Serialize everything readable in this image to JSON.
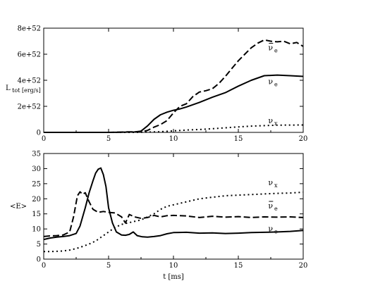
{
  "chart_data": [
    {
      "type": "line",
      "title": "",
      "xlabel": "",
      "ylabel": "L",
      "ylabel_sub": "tot [erg/s]",
      "xlim": [
        0,
        20
      ],
      "ylim": [
        0,
        8e+52
      ],
      "xticks": [
        0,
        5,
        10,
        15,
        20
      ],
      "xtick_labels": [
        "0",
        "5",
        "10",
        "15",
        "20"
      ],
      "yticks": [
        0,
        2e+52,
        4e+52,
        6e+52,
        8e+52
      ],
      "ytick_labels": [
        "0",
        "2e+52",
        "4e+52",
        "6e+52",
        "8e+52"
      ],
      "grid": false,
      "legend": "none",
      "series": [
        {
          "name": "ν e",
          "label_main": "ν",
          "label_sub": "e",
          "label_bar": false,
          "label_at": [
            17.3,
            3.7e+52
          ],
          "style": "solid",
          "x": [
            0,
            5,
            6,
            7,
            7.5,
            8,
            8.5,
            9,
            9.5,
            10,
            10.5,
            11,
            12,
            13,
            14,
            15,
            16,
            17,
            18,
            19,
            20
          ],
          "y": [
            0,
            0,
            1e+50,
            3e+50,
            1e+51,
            5e+51,
            1e+52,
            1.35e+52,
            1.55e+52,
            1.7e+52,
            1.8e+52,
            1.95e+52,
            2.3e+52,
            2.7e+52,
            3.05e+52,
            3.55e+52,
            4e+52,
            4.35e+52,
            4.4e+52,
            4.35e+52,
            4.3e+52
          ]
        },
        {
          "name": "ν̄ e",
          "label_main": "ν",
          "label_sub": "e",
          "label_bar": true,
          "label_at": [
            17.3,
            6.3e+52
          ],
          "style": "dashed",
          "x": [
            0,
            5,
            6,
            6.5,
            7,
            7.5,
            8,
            8.5,
            9,
            9.5,
            10,
            10.5,
            11,
            11.5,
            12,
            12.5,
            13,
            13.5,
            14,
            14.5,
            15,
            15.5,
            16,
            16.5,
            17,
            17.5,
            18,
            18.5,
            19,
            19.5,
            20
          ],
          "y": [
            0,
            0,
            2e+50,
            4e+50,
            4e+50,
            5e+50,
            1.5e+51,
            4e+51,
            6e+51,
            9e+51,
            1.5e+52,
            2e+52,
            2.2e+52,
            2.75e+52,
            3.1e+52,
            3.2e+52,
            3.35e+52,
            3.75e+52,
            4.3e+52,
            4.9e+52,
            5.5e+52,
            6e+52,
            6.5e+52,
            6.85e+52,
            7.1e+52,
            7e+52,
            6.95e+52,
            7e+52,
            6.8e+52,
            6.9e+52,
            6.6e+52
          ]
        },
        {
          "name": "ν x",
          "label_main": "ν",
          "label_sub": "x",
          "label_bar": false,
          "label_at": [
            17.3,
            7e+51
          ],
          "style": "dotted",
          "x": [
            0,
            7,
            7.5,
            8,
            9,
            10,
            11,
            12,
            13,
            14,
            15,
            16,
            17,
            18,
            19,
            20
          ],
          "y": [
            0,
            0,
            1e+50,
            2e+50,
            5e+50,
            1.2e+51,
            1.8e+51,
            2.2e+51,
            2.8e+51,
            3.5e+51,
            4.2e+51,
            4.8e+51,
            5.2e+51,
            5.5e+51,
            5.6e+51,
            5.7e+51
          ]
        }
      ]
    },
    {
      "type": "line",
      "title": "",
      "xlabel": "t [ms]",
      "ylabel": "<E>",
      "ylabel_sub": "",
      "xlim": [
        0,
        20
      ],
      "ylim": [
        0,
        35
      ],
      "xticks": [
        0,
        5,
        10,
        15,
        20
      ],
      "xtick_labels": [
        "0",
        "5",
        "10",
        "15",
        "20"
      ],
      "yticks": [
        0,
        5,
        10,
        15,
        20,
        25,
        30,
        35
      ],
      "ytick_labels": [
        "0",
        "5",
        "10",
        "15",
        "20",
        "25",
        "30",
        "35"
      ],
      "grid": false,
      "legend": "none",
      "series": [
        {
          "name": "ν e",
          "label_main": "ν",
          "label_sub": "e",
          "label_bar": false,
          "label_at": [
            17.3,
            9.2
          ],
          "style": "solid",
          "x": [
            0,
            0.5,
            1,
            1.5,
            2,
            2.5,
            2.8,
            3.2,
            3.5,
            3.8,
            4,
            4.2,
            4.4,
            4.6,
            4.8,
            5,
            5.3,
            5.6,
            6,
            6.3,
            6.6,
            6.9,
            7.2,
            7.6,
            8,
            8.5,
            9,
            9.5,
            10,
            11,
            12,
            13,
            14,
            15,
            16,
            17,
            18,
            19,
            20
          ],
          "y": [
            6.5,
            7.0,
            7.3,
            7.5,
            7.8,
            8.5,
            11,
            17,
            22,
            26,
            28.5,
            29.8,
            30.2,
            28,
            24,
            17,
            12,
            9,
            8.0,
            7.9,
            8.2,
            9.0,
            7.8,
            7.4,
            7.3,
            7.5,
            7.8,
            8.4,
            8.8,
            8.9,
            8.6,
            8.7,
            8.5,
            8.6,
            8.8,
            8.9,
            9.0,
            9.2,
            9.5
          ]
        },
        {
          "name": "ν̄ e",
          "label_main": "ν",
          "label_sub": "e",
          "label_bar": true,
          "label_at": [
            17.3,
            16.8
          ],
          "style": "dashed",
          "x": [
            0,
            0.5,
            1,
            1.5,
            2,
            2.3,
            2.6,
            2.8,
            3.0,
            3.2,
            3.5,
            3.8,
            4.2,
            4.6,
            5.0,
            5.5,
            6.0,
            6.3,
            6.6,
            7.0,
            7.5,
            8.0,
            8.5,
            9.0,
            9.5,
            10,
            11,
            12,
            13,
            14,
            15,
            16,
            17,
            18,
            19,
            20
          ],
          "y": [
            7.5,
            7.7,
            7.8,
            8.0,
            9.0,
            14,
            21,
            22.3,
            21.5,
            22.0,
            19,
            16.5,
            15.5,
            15.8,
            15.5,
            15.3,
            14.0,
            12.0,
            14.8,
            14.0,
            13.5,
            13.8,
            14.5,
            14.0,
            14.4,
            14.5,
            14.3,
            13.8,
            14.2,
            13.9,
            14.1,
            13.8,
            14.0,
            13.9,
            14.0,
            13.8
          ]
        },
        {
          "name": "ν x",
          "label_main": "ν",
          "label_sub": "x",
          "label_bar": false,
          "label_at": [
            17.3,
            24.5
          ],
          "style": "dotted",
          "x": [
            0,
            0.5,
            1,
            1.5,
            2,
            2.5,
            3,
            3.5,
            4,
            4.5,
            5,
            5.5,
            6,
            6.5,
            7,
            7.5,
            8,
            8.5,
            9,
            9.5,
            10,
            11,
            12,
            13,
            14,
            15,
            16,
            17,
            18,
            19,
            20
          ],
          "y": [
            2.5,
            2.5,
            2.6,
            2.7,
            3.0,
            3.5,
            4.2,
            5.0,
            6.0,
            7.5,
            9.0,
            10.5,
            11.5,
            12.0,
            12.5,
            13.0,
            14.0,
            15.0,
            16.5,
            17.5,
            18.0,
            19.0,
            20.0,
            20.5,
            21.0,
            21.2,
            21.4,
            21.6,
            21.8,
            21.9,
            22.2
          ]
        }
      ]
    }
  ]
}
